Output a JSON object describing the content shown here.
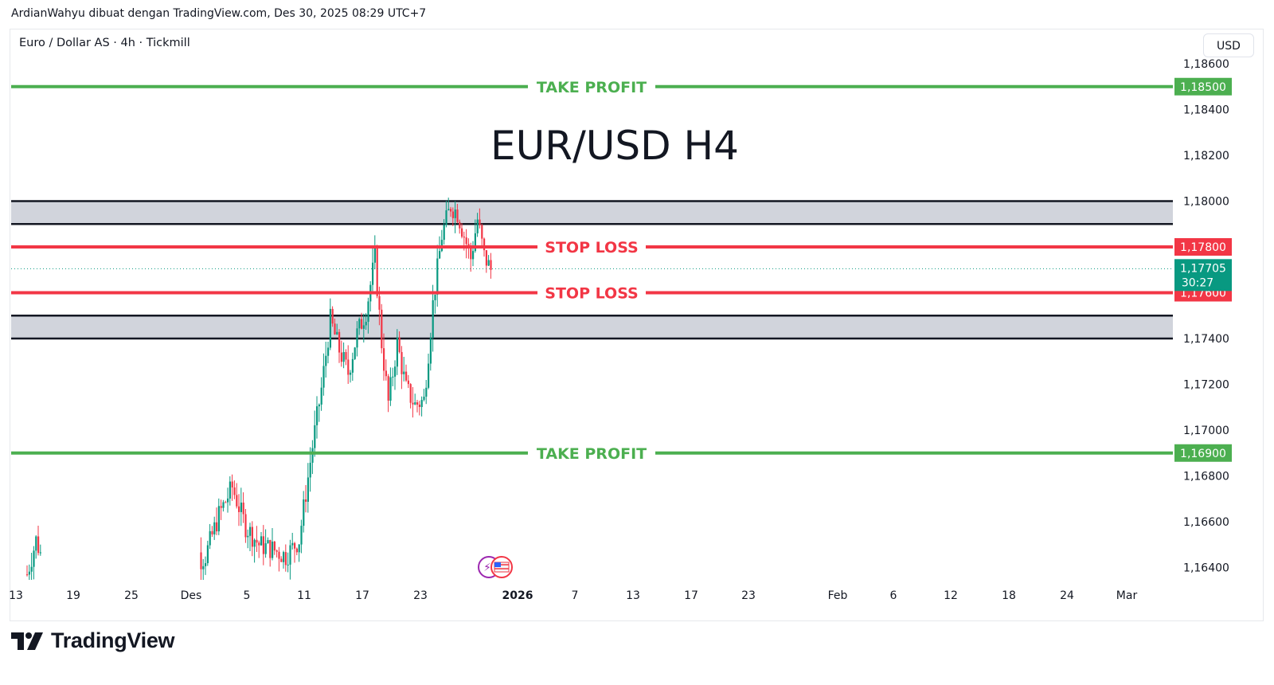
{
  "header": {
    "attribution": "ArdianWahyu dibuat dengan TradingView.com, Des 30, 2025 08:29 UTC+7",
    "symbol": "Euro / Dollar AS · 4h · Tickmill",
    "currency_button": "USD"
  },
  "brand": {
    "name": "TradingView",
    "icon": "tradingview-logo-icon"
  },
  "chart_data": {
    "type": "candlestick",
    "title": "EUR/USD H4",
    "price_axis": {
      "ticks": [
        "1,18600",
        "1,18400",
        "1,18200",
        "1,18000",
        "1,17800",
        "1,17600",
        "1,17400",
        "1,17200",
        "1,17000",
        "1,16800",
        "1,16600",
        "1,16400"
      ],
      "ylim": [
        1.1635,
        1.1862
      ]
    },
    "time_axis": {
      "ticks": [
        "13",
        "19",
        "25",
        "Des",
        "5",
        "11",
        "17",
        "23",
        "2026",
        "7",
        "13",
        "17",
        "23",
        "Feb",
        "6",
        "12",
        "18",
        "24",
        "Mar"
      ]
    },
    "levels": [
      {
        "label": "TAKE PROFIT",
        "price": 1.185,
        "price_label": "1,18500",
        "color": "#4caf50"
      },
      {
        "label": "STOP LOSS",
        "price": 1.178,
        "price_label": "1,17800",
        "color": "#f23645"
      },
      {
        "label": "STOP LOSS",
        "price": 1.176,
        "price_label": "1,17600",
        "color": "#f23645"
      },
      {
        "label": "TAKE PROFIT",
        "price": 1.169,
        "price_label": "1,16900",
        "color": "#4caf50"
      }
    ],
    "zones": [
      {
        "from": 1.179,
        "to": 1.18,
        "color": "#d1d4dc"
      },
      {
        "from": 1.174,
        "to": 1.175,
        "color": "#d1d4dc"
      }
    ],
    "current_price": {
      "price": 1.17705,
      "label": "1,17705",
      "countdown": "30:27",
      "color": "#089981"
    },
    "candle_colors": {
      "up": "#089981",
      "down": "#f23645"
    },
    "anchors": [
      {
        "slot": 0,
        "price": 1.1637
      },
      {
        "slot": 4,
        "price": 1.1652
      },
      {
        "slot": 8,
        "price": 1.164
      },
      {
        "slot": 12,
        "price": 1.1635
      },
      {
        "slot": 16,
        "price": 1.1635
      },
      {
        "slot": 40,
        "price": 1.1635
      },
      {
        "slot": 60,
        "price": 1.1635
      },
      {
        "slot": 72,
        "price": 1.164
      },
      {
        "slot": 80,
        "price": 1.1645
      },
      {
        "slot": 86,
        "price": 1.1663
      },
      {
        "slot": 92,
        "price": 1.1675
      },
      {
        "slot": 98,
        "price": 1.1658
      },
      {
        "slot": 104,
        "price": 1.165
      },
      {
        "slot": 110,
        "price": 1.1648
      },
      {
        "slot": 116,
        "price": 1.1645
      },
      {
        "slot": 122,
        "price": 1.1652
      },
      {
        "slot": 128,
        "price": 1.1693
      },
      {
        "slot": 132,
        "price": 1.1718
      },
      {
        "slot": 136,
        "price": 1.1748
      },
      {
        "slot": 140,
        "price": 1.1735
      },
      {
        "slot": 144,
        "price": 1.1725
      },
      {
        "slot": 148,
        "price": 1.1742
      },
      {
        "slot": 152,
        "price": 1.1752
      },
      {
        "slot": 156,
        "price": 1.1775
      },
      {
        "slot": 159,
        "price": 1.1738
      },
      {
        "slot": 162,
        "price": 1.1712
      },
      {
        "slot": 166,
        "price": 1.1738
      },
      {
        "slot": 170,
        "price": 1.1718
      },
      {
        "slot": 174,
        "price": 1.1711
      },
      {
        "slot": 178,
        "price": 1.1713
      },
      {
        "slot": 182,
        "price": 1.1755
      },
      {
        "slot": 186,
        "price": 1.1785
      },
      {
        "slot": 190,
        "price": 1.1798
      },
      {
        "slot": 193,
        "price": 1.1795
      },
      {
        "slot": 196,
        "price": 1.1785
      },
      {
        "slot": 199,
        "price": 1.1775
      },
      {
        "slot": 202,
        "price": 1.1792
      },
      {
        "slot": 205,
        "price": 1.1776
      },
      {
        "slot": 208,
        "price": 1.177
      }
    ]
  }
}
